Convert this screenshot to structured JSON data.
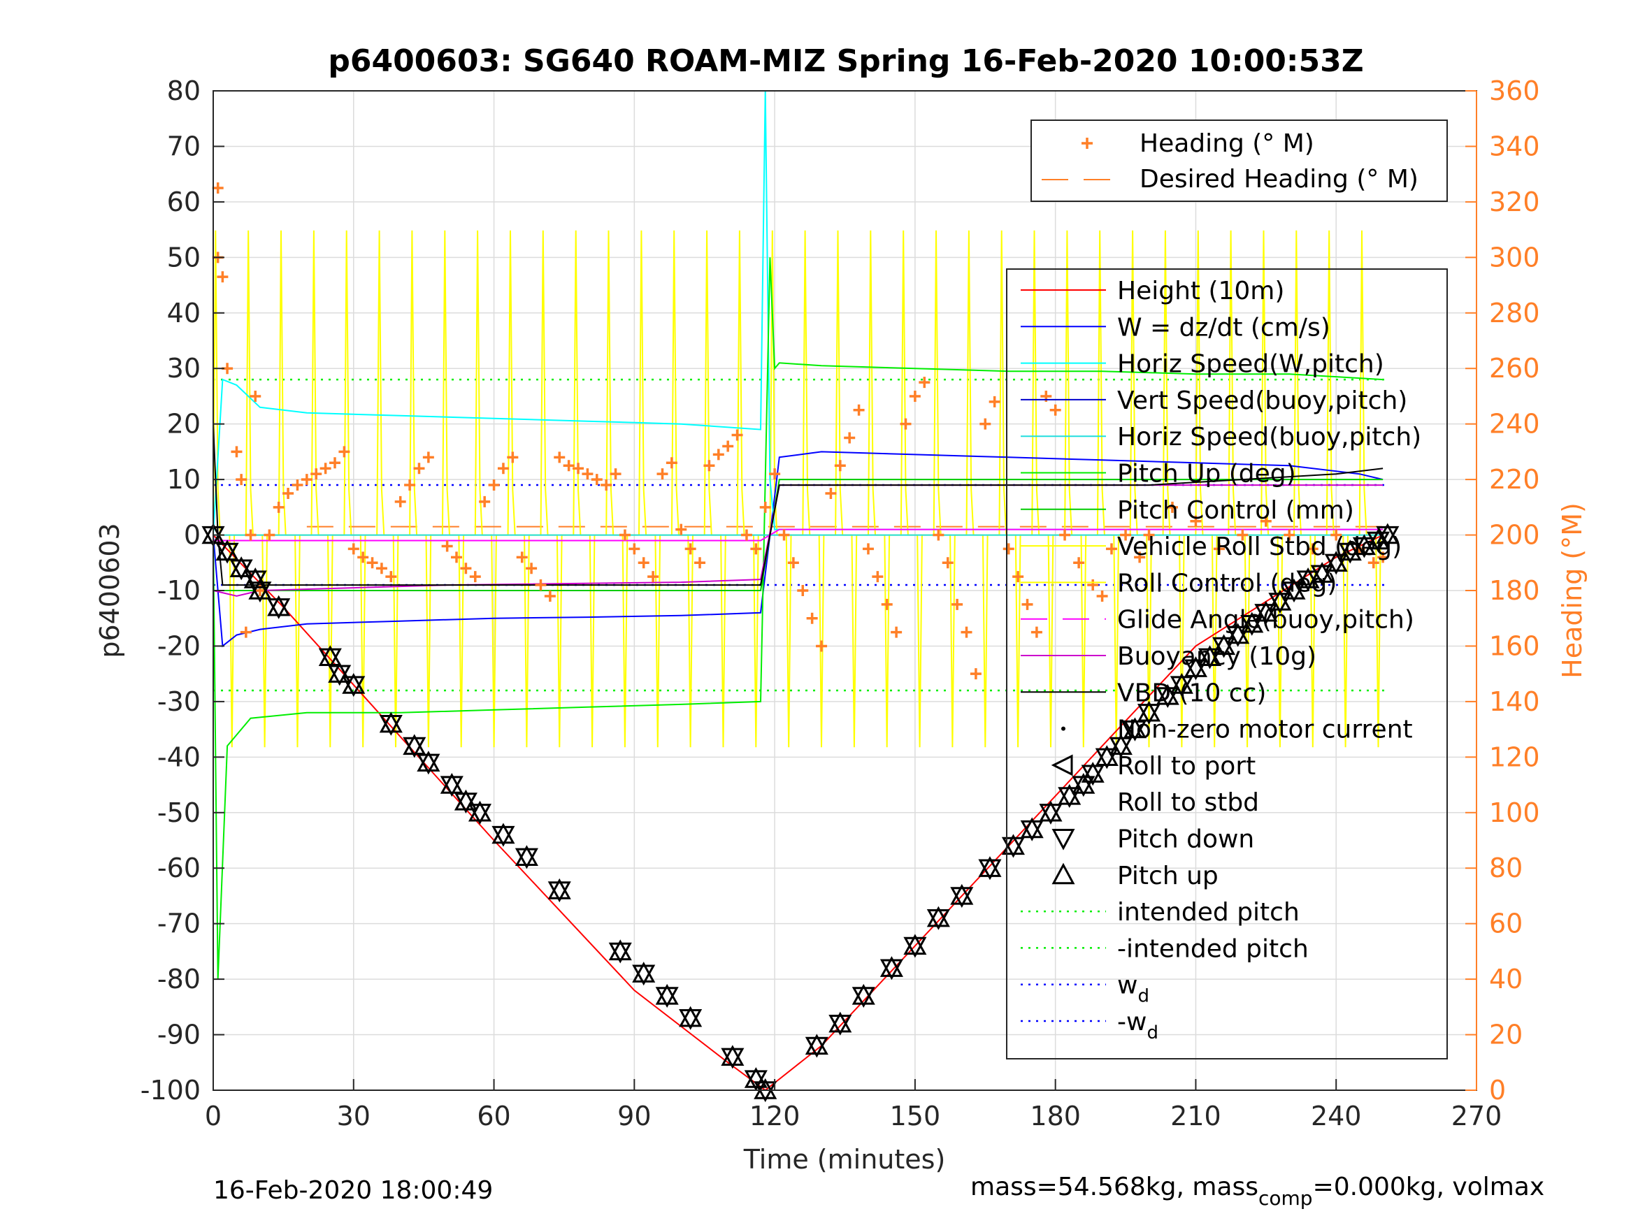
{
  "chart_data": {
    "type": "line",
    "title": "p6400603: SG640 ROAM-MIZ Spring 16-Feb-2020 10:00:53Z",
    "xlabel": "Time (minutes)",
    "ylabel": "p6400603",
    "ylabel_right": "Heading (°M)",
    "xlim": [
      0,
      270
    ],
    "ylim": [
      -100,
      80
    ],
    "ylim_right": [
      0,
      360
    ],
    "xticks": [
      0,
      30,
      60,
      90,
      120,
      150,
      180,
      210,
      240,
      270
    ],
    "yticks": [
      80,
      70,
      60,
      50,
      40,
      30,
      20,
      10,
      0,
      -10,
      -20,
      -30,
      -40,
      -50,
      -60,
      -70,
      -80,
      -90,
      -100
    ],
    "yticks_right": [
      360,
      340,
      320,
      300,
      280,
      260,
      240,
      220,
      200,
      180,
      160,
      140,
      120,
      100,
      80,
      60,
      40,
      20,
      0
    ],
    "grid": true,
    "colors": {
      "height": "#ff0000",
      "w": "#0000ff",
      "horiz_speed_w": "#00ffff",
      "vert_speed_buoy": "#0000cc",
      "horiz_speed_buoy": "#22dddd",
      "pitch": "#00ee00",
      "pitch_control": "#00cc00",
      "roll": "#ffff00",
      "glide_angle": "#ff00ff",
      "buoyancy": "#cc00cc",
      "vbd": "#000000",
      "heading": "#ff7f27",
      "right_axis": "#ff7f27",
      "intended_pitch": "#00ee00",
      "wd": "#0000ff"
    },
    "legend_top": {
      "placement": "top-right",
      "entries": [
        "Heading (° M)",
        "Desired Heading (° M)"
      ]
    },
    "legend_main": {
      "placement": "right",
      "entries": [
        "Height (10m)",
        "W = dz/dt (cm/s)",
        "Horiz Speed(W,pitch)",
        "Vert Speed(buoy,pitch)",
        "Horiz Speed(buoy,pitch)",
        "Pitch Up (deg)",
        "Pitch Control (mm)",
        "Vehicle Roll Stbd (deg)",
        "Roll Control (deg)",
        "Glide Angle(buoy,pitch)",
        "Buoyancy (10g)",
        "VBD (10 cc)",
        "Non-zero motor current",
        "Roll to port",
        "Roll to stbd",
        "Pitch down",
        "Pitch up",
        "intended pitch",
        "-intended pitch",
        "w",
        "-w"
      ],
      "subscript_d": "d"
    },
    "series": [
      {
        "name": "Height (10m)",
        "x": [
          0,
          15,
          30,
          60,
          90,
          110,
          118,
          130,
          150,
          180,
          210,
          240,
          250
        ],
        "y": [
          0,
          -13,
          -27,
          -55,
          -82,
          -95,
          -100,
          -92,
          -74,
          -47,
          -20,
          -4,
          0
        ]
      },
      {
        "name": "W = dz/dt (cm/s)",
        "x": [
          0,
          2,
          5,
          10,
          20,
          40,
          60,
          80,
          100,
          117,
          119,
          121,
          130,
          150,
          170,
          190,
          210,
          230,
          245,
          250
        ],
        "y": [
          0,
          -20,
          -18,
          -17,
          -16,
          -15.5,
          -15,
          -14.8,
          -14.5,
          -14,
          0,
          14,
          15,
          14.5,
          14,
          13.5,
          13,
          12.5,
          11,
          10
        ]
      },
      {
        "name": "Horiz Speed(W,pitch)",
        "x": [
          0,
          2,
          5,
          10,
          20,
          40,
          60,
          80,
          100,
          117,
          118,
          119,
          120,
          121,
          130,
          150,
          170,
          190,
          210,
          230,
          250
        ],
        "y": [
          0,
          28,
          27,
          23,
          22,
          21.5,
          21,
          20.5,
          20,
          19,
          80,
          10,
          1,
          1,
          1,
          1,
          1,
          1,
          1,
          1,
          1
        ]
      },
      {
        "name": "Pitch Up (deg)",
        "x": [
          0,
          1,
          3,
          8,
          20,
          40,
          60,
          80,
          100,
          117,
          119,
          120,
          121,
          130,
          150,
          170,
          190,
          210,
          230,
          250
        ],
        "y": [
          0,
          -80,
          -38,
          -33,
          -32,
          -32,
          -31.5,
          -31,
          -30.5,
          -30,
          50,
          30,
          31,
          30.5,
          30,
          29.5,
          29.5,
          29,
          29,
          28
        ]
      },
      {
        "name": "Pitch Control (mm)",
        "x": [
          0,
          10,
          50,
          100,
          117,
          121,
          150,
          200,
          250
        ],
        "y": [
          -10,
          -10,
          -10,
          -10,
          -10,
          10,
          10,
          10,
          10
        ]
      },
      {
        "name": "Vehicle Roll Stbd (deg)",
        "x": [
          0,
          10,
          50,
          100,
          117,
          121,
          150,
          200,
          250
        ],
        "y": [
          0,
          0,
          0,
          0,
          0,
          0,
          0,
          0,
          0
        ]
      },
      {
        "name": "Glide Angle(buoy,pitch)",
        "x": [
          0,
          10,
          50,
          100,
          117,
          121,
          150,
          200,
          250
        ],
        "y": [
          -1,
          -1,
          -1,
          -1,
          -1,
          1,
          1,
          1,
          1
        ]
      },
      {
        "name": "Buoyancy (10g)",
        "x": [
          0,
          5,
          10,
          50,
          100,
          117,
          121,
          150,
          200,
          250
        ],
        "y": [
          -10,
          -11,
          -10,
          -9,
          -8.5,
          -8,
          9,
          9,
          9,
          9
        ]
      },
      {
        "name": "VBD (10 cc)",
        "x": [
          0,
          1,
          2,
          10,
          50,
          100,
          117,
          121,
          150,
          200,
          240,
          250
        ],
        "y": [
          20,
          0,
          -9,
          -9,
          -9,
          -9,
          -9,
          9,
          9,
          9,
          11,
          12
        ]
      }
    ],
    "intended_pitch": 28,
    "wd": 9,
    "desired_heading": 203,
    "heading_points": [
      [
        1,
        325
      ],
      [
        1,
        300
      ],
      [
        2,
        293
      ],
      [
        3,
        260
      ],
      [
        5,
        230
      ],
      [
        6,
        220
      ],
      [
        7,
        165
      ],
      [
        8,
        200
      ],
      [
        9,
        250
      ],
      [
        10,
        180
      ],
      [
        12,
        200
      ],
      [
        14,
        210
      ],
      [
        16,
        215
      ],
      [
        18,
        218
      ],
      [
        20,
        220
      ],
      [
        22,
        222
      ],
      [
        24,
        224
      ],
      [
        26,
        226
      ],
      [
        28,
        230
      ],
      [
        30,
        195
      ],
      [
        32,
        192
      ],
      [
        34,
        190
      ],
      [
        36,
        188
      ],
      [
        38,
        185
      ],
      [
        40,
        212
      ],
      [
        42,
        218
      ],
      [
        44,
        224
      ],
      [
        46,
        228
      ],
      [
        50,
        196
      ],
      [
        52,
        192
      ],
      [
        54,
        188
      ],
      [
        56,
        185
      ],
      [
        58,
        212
      ],
      [
        60,
        218
      ],
      [
        62,
        224
      ],
      [
        64,
        228
      ],
      [
        66,
        192
      ],
      [
        68,
        188
      ],
      [
        70,
        182
      ],
      [
        72,
        178
      ],
      [
        74,
        228
      ],
      [
        76,
        225
      ],
      [
        78,
        224
      ],
      [
        80,
        222
      ],
      [
        82,
        220
      ],
      [
        84,
        218
      ],
      [
        86,
        222
      ],
      [
        88,
        200
      ],
      [
        90,
        195
      ],
      [
        92,
        190
      ],
      [
        94,
        185
      ],
      [
        96,
        222
      ],
      [
        98,
        226
      ],
      [
        100,
        202
      ],
      [
        102,
        195
      ],
      [
        104,
        190
      ],
      [
        106,
        225
      ],
      [
        108,
        229
      ],
      [
        110,
        232
      ],
      [
        112,
        236
      ],
      [
        114,
        200
      ],
      [
        116,
        195
      ],
      [
        118,
        210
      ],
      [
        120,
        222
      ],
      [
        122,
        200
      ],
      [
        124,
        190
      ],
      [
        126,
        180
      ],
      [
        128,
        170
      ],
      [
        130,
        160
      ],
      [
        132,
        215
      ],
      [
        134,
        225
      ],
      [
        136,
        235
      ],
      [
        138,
        245
      ],
      [
        140,
        195
      ],
      [
        142,
        185
      ],
      [
        144,
        175
      ],
      [
        146,
        165
      ],
      [
        148,
        240
      ],
      [
        150,
        250
      ],
      [
        152,
        255
      ],
      [
        155,
        200
      ],
      [
        157,
        190
      ],
      [
        159,
        175
      ],
      [
        161,
        165
      ],
      [
        163,
        150
      ],
      [
        165,
        240
      ],
      [
        167,
        248
      ],
      [
        170,
        195
      ],
      [
        172,
        185
      ],
      [
        174,
        175
      ],
      [
        176,
        165
      ],
      [
        178,
        250
      ],
      [
        180,
        245
      ],
      [
        182,
        200
      ],
      [
        185,
        190
      ],
      [
        188,
        182
      ],
      [
        190,
        178
      ],
      [
        192,
        195
      ],
      [
        195,
        200
      ],
      [
        198,
        192
      ],
      [
        200,
        200
      ],
      [
        205,
        210
      ],
      [
        210,
        205
      ],
      [
        215,
        195
      ],
      [
        220,
        200
      ],
      [
        225,
        205
      ],
      [
        230,
        200
      ],
      [
        235,
        195
      ],
      [
        240,
        200
      ],
      [
        245,
        195
      ],
      [
        248,
        190
      ],
      [
        250,
        192
      ]
    ],
    "markers": [
      [
        0,
        0
      ],
      [
        3,
        -3
      ],
      [
        6,
        -6
      ],
      [
        9,
        -8
      ],
      [
        10,
        -10
      ],
      [
        14,
        -13
      ],
      [
        25,
        -22
      ],
      [
        27,
        -25
      ],
      [
        30,
        -27
      ],
      [
        38,
        -34
      ],
      [
        43,
        -38
      ],
      [
        46,
        -41
      ],
      [
        51,
        -45
      ],
      [
        54,
        -48
      ],
      [
        57,
        -50
      ],
      [
        62,
        -54
      ],
      [
        67,
        -58
      ],
      [
        74,
        -64
      ],
      [
        87,
        -75
      ],
      [
        92,
        -79
      ],
      [
        97,
        -83
      ],
      [
        102,
        -87
      ],
      [
        111,
        -94
      ],
      [
        116,
        -98
      ],
      [
        118,
        -100
      ],
      [
        129,
        -92
      ],
      [
        134,
        -88
      ],
      [
        139,
        -83
      ],
      [
        145,
        -78
      ],
      [
        150,
        -74
      ],
      [
        155,
        -69
      ],
      [
        160,
        -65
      ],
      [
        166,
        -60
      ],
      [
        171,
        -56
      ],
      [
        175,
        -53
      ],
      [
        179,
        -50
      ],
      [
        183,
        -47
      ],
      [
        186,
        -45
      ],
      [
        188,
        -43
      ],
      [
        191,
        -40
      ],
      [
        194,
        -38
      ],
      [
        197,
        -35
      ],
      [
        200,
        -32
      ],
      [
        204,
        -29
      ],
      [
        207,
        -27
      ],
      [
        210,
        -24
      ],
      [
        213,
        -22
      ],
      [
        216,
        -20
      ],
      [
        219,
        -18
      ],
      [
        222,
        -16
      ],
      [
        225,
        -14
      ],
      [
        228,
        -12
      ],
      [
        231,
        -10
      ],
      [
        234,
        -8
      ],
      [
        237,
        -7
      ],
      [
        240,
        -5
      ],
      [
        243,
        -3
      ],
      [
        246,
        -2
      ],
      [
        249,
        -1
      ],
      [
        251,
        0
      ]
    ],
    "footer_left": "16-Feb-2020 18:00:49",
    "footer_right_pre": "mass=54.568kg, mass",
    "footer_right_sub": "comp",
    "footer_right_post": "=0.000kg, volmax"
  }
}
